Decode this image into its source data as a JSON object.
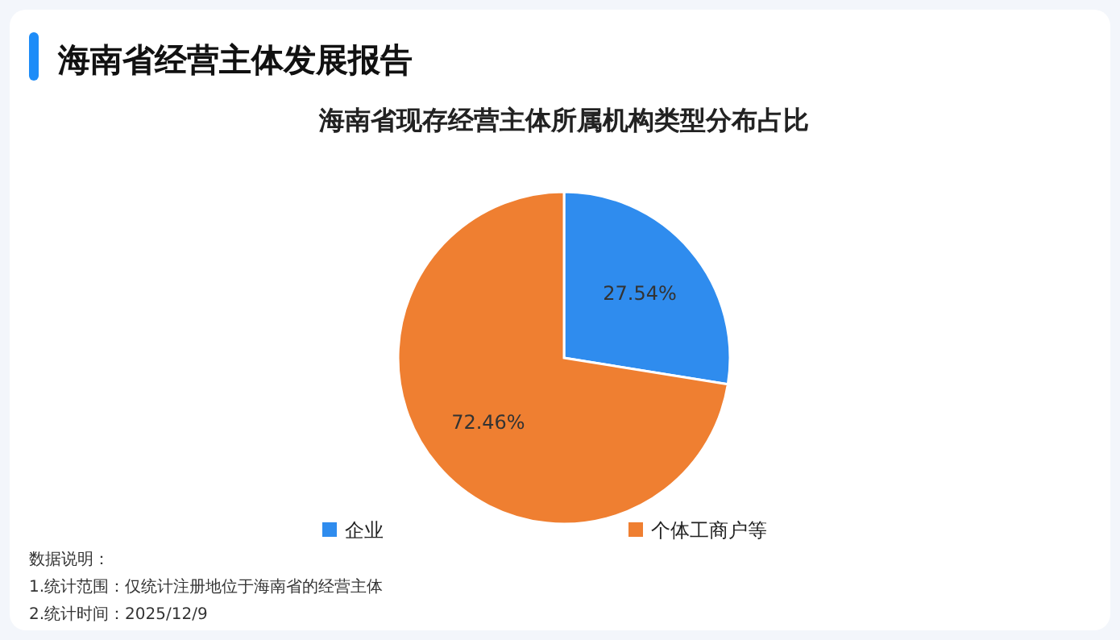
{
  "chart_data": {
    "type": "pie",
    "title": "海南省经营主体发展报告",
    "subtitle": "海南省现存经营主体所属机构类型分布占比",
    "categories": [
      "企业",
      "个体工商户等"
    ],
    "values": [
      27.54,
      72.46
    ],
    "colors": [
      "#2f8cee",
      "#ef7f31"
    ],
    "value_labels": [
      "27.54%",
      "72.46%"
    ],
    "legend": "bottom",
    "annotations": [
      "数据说明：",
      "1.统计范围：仅统计注册地位于海南省的经营主体",
      "2.统计时间：2025/12/9"
    ]
  }
}
